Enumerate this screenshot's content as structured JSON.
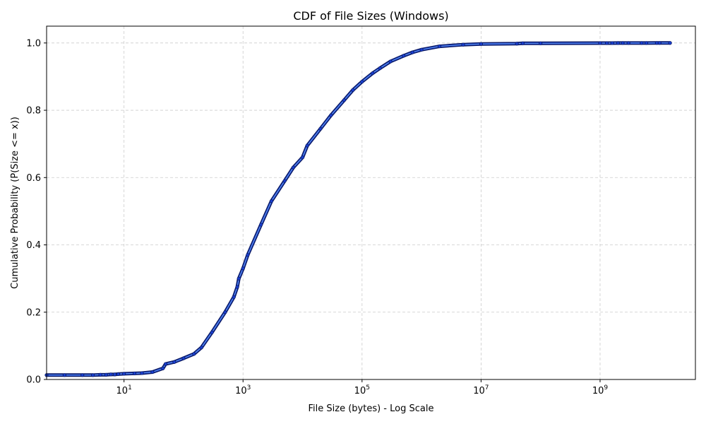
{
  "chart_data": {
    "type": "line",
    "title": "CDF of File Sizes (Windows)",
    "xlabel": "File Size (bytes) - Log Scale",
    "ylabel": "Cumulative Probability (P(Size <= x))",
    "x_scale": "log",
    "xlim": [
      0.5,
      40000000000
    ],
    "ylim": [
      0,
      1.05
    ],
    "grid": true,
    "x_ticks": [
      {
        "value": 10,
        "base": "10",
        "exp": "1"
      },
      {
        "value": 1000,
        "base": "10",
        "exp": "3"
      },
      {
        "value": 100000,
        "base": "10",
        "exp": "5"
      },
      {
        "value": 10000000,
        "base": "10",
        "exp": "7"
      },
      {
        "value": 1000000000,
        "base": "10",
        "exp": "9"
      }
    ],
    "y_ticks": [
      "0.0",
      "0.2",
      "0.4",
      "0.6",
      "0.8",
      "1.0"
    ],
    "series": [
      {
        "color": "#1a3fd0",
        "line_color": "#5b8ee6",
        "x": [
          0.5,
          1,
          2,
          3,
          4,
          5,
          6,
          7,
          8,
          10,
          15,
          20,
          30,
          45,
          50,
          70,
          100,
          150,
          200,
          300,
          500,
          700,
          800,
          850,
          1000,
          1200,
          2000,
          3000,
          5000,
          7000,
          10000,
          12000,
          20000,
          30000,
          50000,
          70000,
          100000,
          150000,
          200000,
          300000,
          500000,
          700000,
          1000000,
          2000000,
          5000000,
          10000000,
          40000000,
          50000000,
          100000000,
          1000000000,
          1300000000,
          1600000000,
          2000000000,
          2400000000,
          3000000000,
          5000000000,
          6000000000,
          9000000000,
          10000000000,
          15000000000
        ],
        "y": [
          0.013,
          0.013,
          0.013,
          0.013,
          0.014,
          0.014,
          0.015,
          0.015,
          0.016,
          0.017,
          0.018,
          0.019,
          0.022,
          0.033,
          0.046,
          0.052,
          0.063,
          0.076,
          0.095,
          0.14,
          0.2,
          0.245,
          0.275,
          0.3,
          0.33,
          0.37,
          0.46,
          0.53,
          0.59,
          0.63,
          0.66,
          0.695,
          0.745,
          0.785,
          0.83,
          0.86,
          0.885,
          0.91,
          0.925,
          0.945,
          0.962,
          0.972,
          0.98,
          0.99,
          0.995,
          0.997,
          0.998,
          0.999,
          0.999,
          0.9995,
          0.9996,
          0.9997,
          0.9998,
          0.9998,
          0.9999,
          0.9999,
          0.9999,
          1.0,
          1.0,
          1.0
        ]
      }
    ]
  }
}
